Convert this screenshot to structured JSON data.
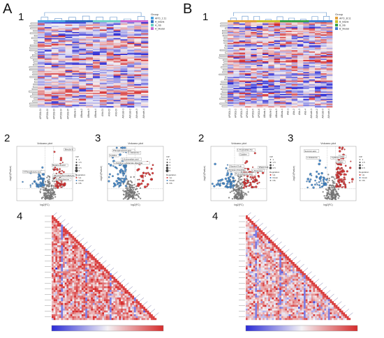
{
  "panels": [
    {
      "letter": "A",
      "heatmap": {
        "number": "1",
        "legend": {
          "title": "Group",
          "items": [
            {
              "label": "APO_1:11",
              "color": "#4aa3df"
            },
            {
              "label": "A_Blank",
              "color": "#2f6fc4"
            },
            {
              "label": "A_Nb",
              "color": "#6fd0c9"
            },
            {
              "label": "A_Model",
              "color": "#c86ad2"
            }
          ]
        },
        "column_labels": [
          "APO01-01",
          "APO01-02",
          "APO01-03",
          "APO01-04",
          "APO01-05",
          "ABlank-1",
          "ABlank-2",
          "ABlank-3",
          "ABlank-4",
          "ANb-01",
          "ANb-02",
          "ANb-03",
          "AModel-1",
          "AModel-2",
          "AModel-3",
          "AModel-4"
        ]
      },
      "volcano_left": {
        "number": "2",
        "title": "Volcano plot",
        "xlabel": "log2(FC)",
        "ylabel": "-log10(Pvalue)",
        "annotations": [
          "Merulin-B",
          "Betaine-B-acid",
          "4-Phenylbutyric acid",
          "Dihydroxybenzaldehyde",
          "N-Ethyldiamine"
        ],
        "legend": {
          "title": "VIP",
          "items": [
            "1",
            "1.5",
            "2",
            "2.5",
            "3"
          ],
          "reg_title": "Regulation",
          "reg_items": [
            "Up",
            "Down",
            "NS"
          ]
        }
      },
      "volcano_right": {
        "number": "3",
        "title": "Volcano plot",
        "xlabel": "log2(FC)",
        "ylabel": "-log10(Pvalue)",
        "annotations": [
          "Phenylpropionic acid",
          "L-Glutamine",
          "Cytidine",
          "2-Aminoadipic acid",
          "L-histidine L-glutamate-dipeptide"
        ],
        "legend": {
          "title": "VIP",
          "items": [
            "1",
            "2",
            "3",
            "4",
            "5"
          ],
          "reg_title": "Regulation",
          "reg_items": [
            "Up",
            "Down",
            "NS"
          ]
        }
      },
      "correlation": {
        "number": "4"
      }
    },
    {
      "letter": "B",
      "heatmap": {
        "number": "1",
        "legend": {
          "title": "Group",
          "items": [
            {
              "label": "APO_B:11",
              "color": "#e2a23b"
            },
            {
              "label": "B_Blank",
              "color": "#c9c22a"
            },
            {
              "label": "B_Nb",
              "color": "#3aa34a"
            },
            {
              "label": "B_Model",
              "color": "#3f7fd1"
            }
          ]
        },
        "column_labels": [
          "APO01-1",
          "APO01-2",
          "APO01-3",
          "APO01-4",
          "APO01-5",
          "APO01-6",
          "ABlank-1",
          "ABlank-2",
          "ABlank-3",
          "ABlank-4",
          "ANb-1",
          "ANb-2",
          "ANb-3",
          "ANb-4",
          "AModel-1",
          "AModel-2",
          "AModel-3",
          "AModel-4"
        ]
      },
      "volcano_left": {
        "number": "2",
        "title": "Volcano plot",
        "xlabel": "log2(FC)",
        "ylabel": "-log10(Pvalue)",
        "annotations": [
          "L-Tryptophan-Trp",
          "Cytidine",
          "Glycerol-3-ph",
          "Pentose phosphate",
          "Protocatechuic acid",
          "Rhamnose",
          "L-Threonine"
        ],
        "legend": {
          "title": "VIP",
          "items": [
            "1",
            "1.5",
            "2",
            "2.5"
          ],
          "reg_title": "Regulation",
          "reg_items": [
            "Up",
            "Down",
            "NS"
          ]
        }
      },
      "volcano_right": {
        "number": "3",
        "title": "Volcano plot",
        "xlabel": "log2(FC)",
        "ylabel": "-log10(Pvalue)",
        "annotations": [
          "Succinic acid",
          "L-Glutamine",
          "Cytidine",
          "Uracil",
          "Uridine"
        ],
        "legend": {
          "title": "VIP",
          "items": [
            "1",
            "1.5",
            "2",
            "2.5"
          ],
          "reg_title": "Regulation",
          "reg_items": [
            "Up",
            "Down",
            "NS"
          ]
        }
      },
      "correlation": {
        "number": "4"
      }
    }
  ],
  "colors": {
    "heat_low": "#2b2bd6",
    "heat_mid": "#f4f2f5",
    "heat_high": "#d62b2b",
    "up": "#d32f2f",
    "down": "#3f84c6",
    "ns": "#8a8a8a"
  },
  "chart_data": [
    {
      "type": "heatmap",
      "panel": "A1",
      "columns": 16,
      "rows": "many",
      "legend": "top-right"
    },
    {
      "type": "scatter",
      "panel": "A2",
      "title": "Volcano plot",
      "xlabel": "log2(FC)",
      "ylabel": "-log10(Pvalue)",
      "series": [
        {
          "name": "Up"
        },
        {
          "name": "Down"
        },
        {
          "name": "NS"
        }
      ]
    },
    {
      "type": "scatter",
      "panel": "A3",
      "title": "Volcano plot",
      "xlabel": "log2(FC)",
      "ylabel": "-log10(Pvalue)",
      "series": [
        {
          "name": "Up"
        },
        {
          "name": "Down"
        },
        {
          "name": "NS"
        }
      ]
    },
    {
      "type": "heatmap",
      "panel": "A4",
      "shape": "lower-triangular correlation matrix"
    },
    {
      "type": "heatmap",
      "panel": "B1",
      "columns": 18,
      "rows": "many",
      "legend": "top-right"
    },
    {
      "type": "scatter",
      "panel": "B2",
      "title": "Volcano plot",
      "xlabel": "log2(FC)",
      "ylabel": "-log10(Pvalue)",
      "series": [
        {
          "name": "Up"
        },
        {
          "name": "Down"
        },
        {
          "name": "NS"
        }
      ]
    },
    {
      "type": "scatter",
      "panel": "B3",
      "title": "Volcano plot",
      "xlabel": "log2(FC)",
      "ylabel": "-log10(Pvalue)",
      "series": [
        {
          "name": "Up"
        },
        {
          "name": "Down"
        },
        {
          "name": "NS"
        }
      ]
    },
    {
      "type": "heatmap",
      "panel": "B4",
      "shape": "lower-triangular correlation matrix"
    }
  ]
}
